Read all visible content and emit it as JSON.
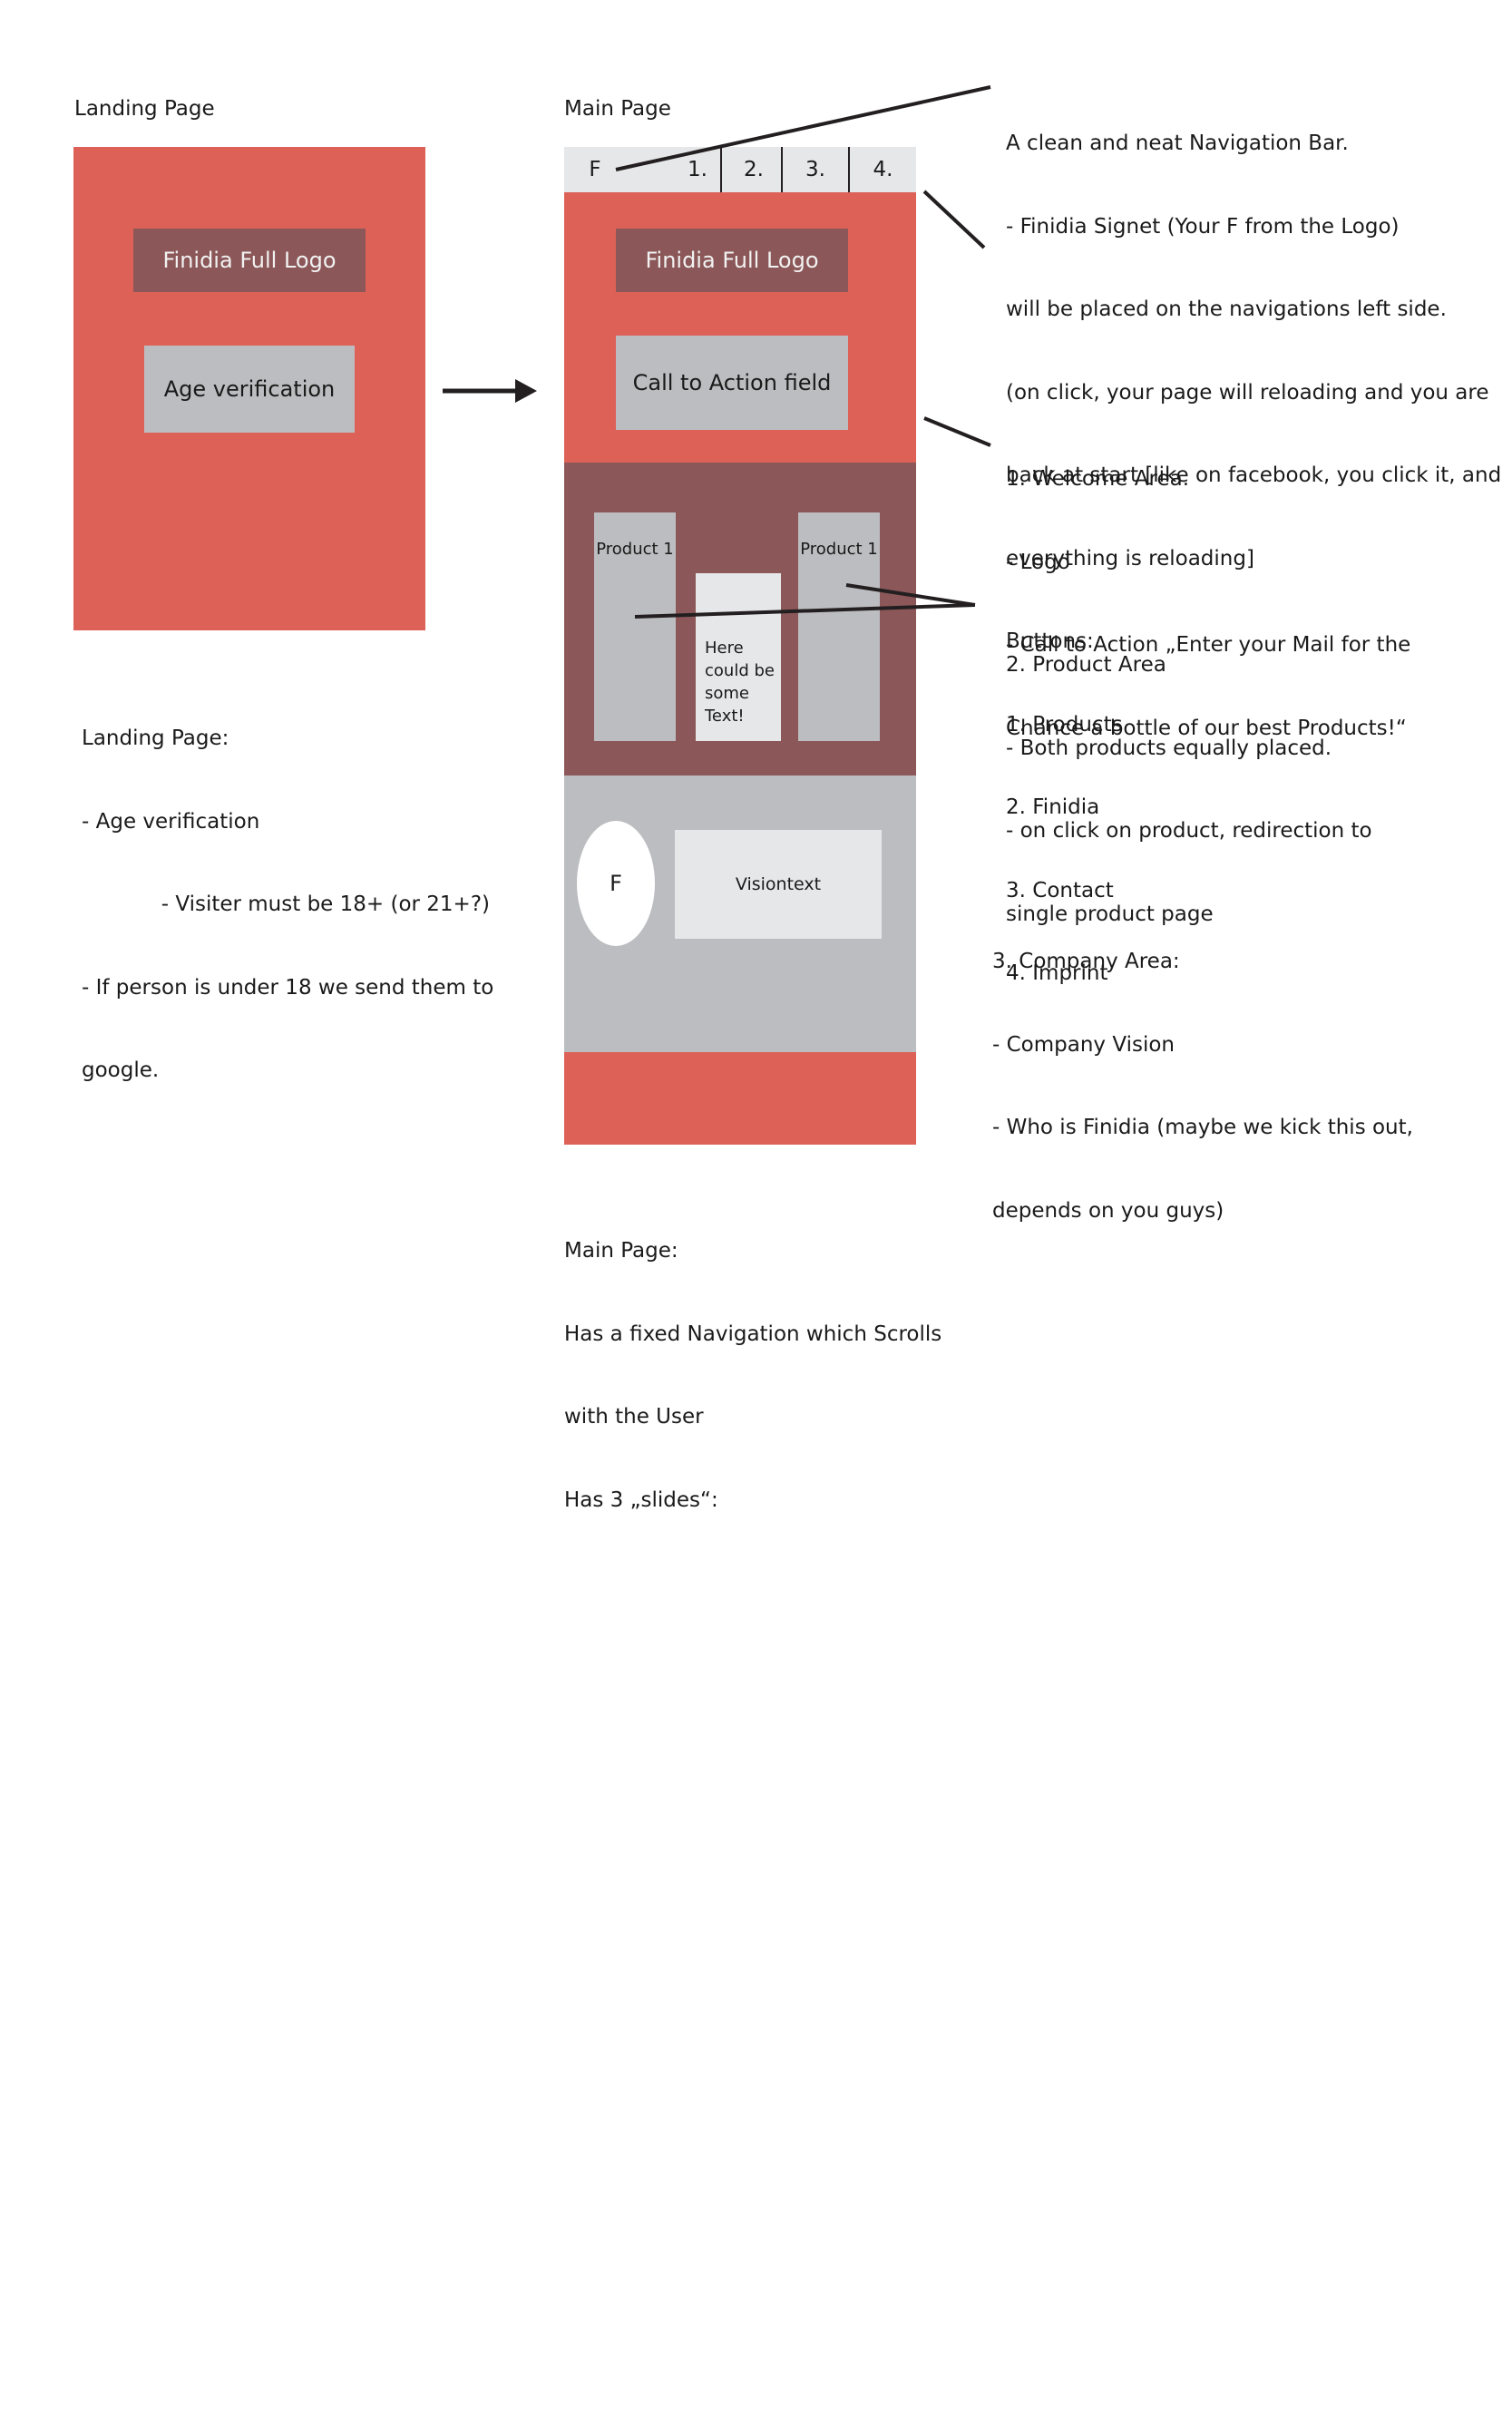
{
  "landing": {
    "heading": "Landing Page",
    "logo_label": "Finidia Full Logo",
    "age_label": "Age verification",
    "notes": [
      "Landing Page:",
      "- Age verification",
      "            - Visiter must be 18+ (or 21+?)",
      "- If person is under 18 we send them to",
      "google."
    ]
  },
  "main_page": {
    "heading": "Main Page",
    "nav": {
      "signet": "F",
      "buttons": [
        "1.",
        "2.",
        "3.",
        "4."
      ]
    },
    "welcome": {
      "logo_label": "Finidia Full Logo",
      "cta_label": "Call to Action field"
    },
    "products": {
      "left_label": "Product 1",
      "right_label": "Product 1",
      "middle_text_lines": [
        "Here",
        "could be",
        "some",
        "Text!"
      ]
    },
    "company": {
      "signet": "F",
      "vision_label": "Visiontext"
    },
    "notes": [
      "Main Page:",
      "Has a fixed Navigation which Scrolls",
      "with the User",
      "Has 3 „slides“:"
    ]
  },
  "annotations": {
    "navigation": [
      "A clean and neat Navigation Bar.",
      "- Finidia Signet (Your F from the Logo)",
      "will be placed on the navigations left side.",
      "(on click, your page will reloading and you are",
      "back at start [like on facebook, you click it, and",
      "everything is reloading]",
      "Buttons:",
      "1. Products",
      "2. Finidia",
      "3. Contact",
      "4. Imprint"
    ],
    "welcome": [
      "1. Welcome Area.",
      "- Logo",
      "- Call to Action „Enter your Mail for the",
      "Chance a bottle of our best Products!“"
    ],
    "product": [
      "2. Product Area",
      "- Both products equally placed.",
      "- on click on product, redirection to",
      "single product page"
    ],
    "company": [
      "3. Company Area:",
      "- Company Vision",
      "- Who is Finidia (maybe we kick this out,",
      "depends on you guys)"
    ]
  },
  "colors": {
    "red": "#dd6157",
    "maroon": "#8b5758",
    "grey": "#bcbdc0",
    "light_grey": "#e6e7e8"
  }
}
